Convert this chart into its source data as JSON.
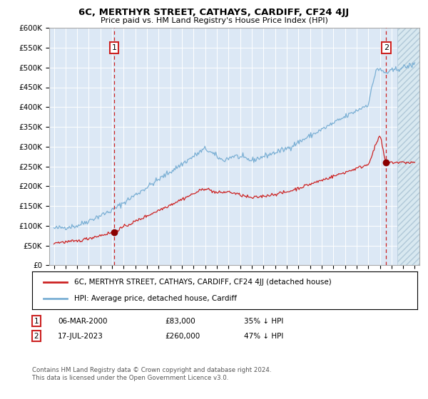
{
  "title": "6C, MERTHYR STREET, CATHAYS, CARDIFF, CF24 4JJ",
  "subtitle": "Price paid vs. HM Land Registry's House Price Index (HPI)",
  "background_color": "#ffffff",
  "plot_bg_color": "#dce8f5",
  "hatch_color": "#c8d8e8",
  "legend_line1": "6C, MERTHYR STREET, CATHAYS, CARDIFF, CF24 4JJ (detached house)",
  "legend_line2": "HPI: Average price, detached house, Cardiff",
  "footer": "Contains HM Land Registry data © Crown copyright and database right 2024.\nThis data is licensed under the Open Government Licence v3.0.",
  "sale1_label": "1",
  "sale1_date": "06-MAR-2000",
  "sale1_price": "£83,000",
  "sale1_hpi": "35% ↓ HPI",
  "sale2_label": "2",
  "sale2_date": "17-JUL-2023",
  "sale2_price": "£260,000",
  "sale2_hpi": "47% ↓ HPI",
  "ylim": [
    0,
    600000
  ],
  "yticks": [
    0,
    50000,
    100000,
    150000,
    200000,
    250000,
    300000,
    350000,
    400000,
    450000,
    500000,
    550000,
    600000
  ],
  "xlim_min": 1994.6,
  "xlim_max": 2026.4,
  "hpi_color": "#7aafd4",
  "price_color": "#cc2222",
  "marker_color": "#8b0000",
  "vline_color": "#cc2222",
  "grid_color": "#ffffff",
  "border_color": "#aaaaaa",
  "sale1_x": 2000.18,
  "sale1_y": 83000,
  "sale2_x": 2023.54,
  "sale2_y": 260000,
  "hatch_start": 2024.5,
  "hatch_end": 2026.4
}
